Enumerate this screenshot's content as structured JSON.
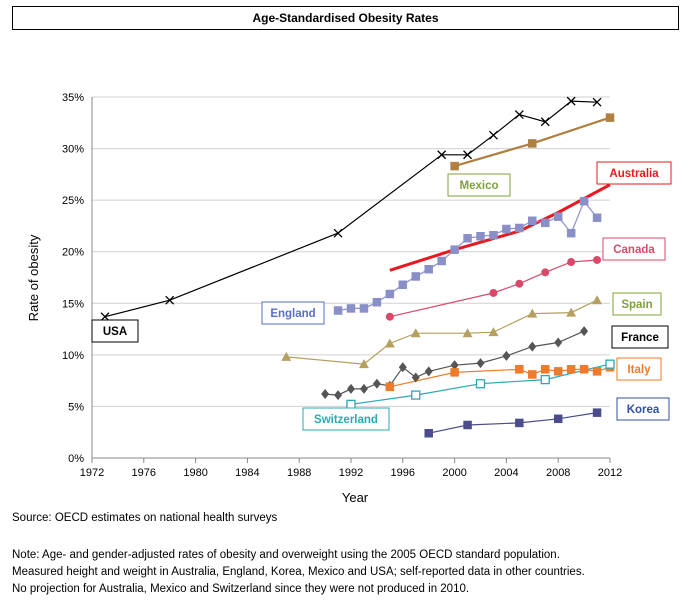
{
  "chart_data": {
    "type": "line",
    "title": "Age-Standardised Obesity Rates",
    "xlabel": "Year",
    "ylabel": "Rate of obesity",
    "xlim": [
      1972,
      2012
    ],
    "ylim": [
      0,
      35
    ],
    "x_ticks": [
      "1972",
      "1976",
      "1980",
      "1984",
      "1988",
      "1992",
      "1996",
      "2000",
      "2004",
      "2008",
      "2012"
    ],
    "y_ticks": [
      "0%",
      "5%",
      "10%",
      "15%",
      "20%",
      "25%",
      "30%",
      "35%"
    ],
    "grid": "horizontal",
    "series": [
      {
        "name": "USA",
        "color": "#000000",
        "marker": "x",
        "label_color": "#000000",
        "x": [
          1973,
          1978,
          1991,
          1999,
          2001,
          2003,
          2005,
          2007,
          2009,
          2011
        ],
        "y": [
          13.7,
          15.3,
          21.8,
          29.4,
          29.4,
          31.3,
          33.3,
          32.6,
          34.6,
          34.5
        ]
      },
      {
        "name": "Mexico",
        "color": "#b08040",
        "marker": "square",
        "label_color": "#7fa03a",
        "x": [
          2000,
          2006,
          2012
        ],
        "y": [
          28.3,
          30.5,
          33.0
        ]
      },
      {
        "name": "Australia",
        "color": "#e8191e",
        "marker": "none",
        "label_color": "#e8191e",
        "x": [
          1995,
          2000,
          2005,
          2008,
          2012
        ],
        "y": [
          18.2,
          20.2,
          22.0,
          23.8,
          26.5
        ]
      },
      {
        "name": "England",
        "color": "#8a8fc8",
        "marker": "square",
        "label_color": "#5a6ec8",
        "x": [
          1991,
          1992,
          1993,
          1994,
          1995,
          1996,
          1997,
          1998,
          1999,
          2000,
          2001,
          2002,
          2003,
          2004,
          2005,
          2006,
          2007,
          2008,
          2009,
          2010,
          2011
        ],
        "y": [
          14.3,
          14.5,
          14.5,
          15.1,
          15.9,
          16.8,
          17.6,
          18.3,
          19.1,
          20.2,
          21.3,
          21.5,
          21.6,
          22.2,
          22.3,
          23.0,
          22.8,
          23.4,
          21.8,
          24.9,
          23.3
        ]
      },
      {
        "name": "Canada",
        "color": "#d94a6a",
        "marker": "circle",
        "label_color": "#d94a6a",
        "x": [
          1995,
          2003,
          2005,
          2007,
          2009,
          2011
        ],
        "y": [
          13.7,
          16.0,
          16.9,
          18.0,
          19.0,
          19.2
        ]
      },
      {
        "name": "Spain",
        "color": "#b5a060",
        "marker": "triangle",
        "label_color": "#7fa03a",
        "x": [
          1987,
          1993,
          1995,
          1997,
          2001,
          2003,
          2006,
          2009,
          2011
        ],
        "y": [
          9.8,
          9.1,
          11.1,
          12.1,
          12.1,
          12.2,
          14.0,
          14.1,
          15.3
        ]
      },
      {
        "name": "France",
        "color": "#555555",
        "marker": "diamond",
        "label_color": "#000000",
        "x": [
          1990,
          1991,
          1992,
          1993,
          1994,
          1995,
          1996,
          1997,
          1998,
          2000,
          2002,
          2004,
          2006,
          2008,
          2010
        ],
        "y": [
          6.2,
          6.1,
          6.7,
          6.7,
          7.2,
          7.0,
          8.8,
          7.8,
          8.4,
          9.0,
          9.2,
          9.9,
          10.8,
          11.2,
          12.3
        ]
      },
      {
        "name": "Italy",
        "color": "#f07a2a",
        "marker": "square",
        "label_color": "#f07a2a",
        "x": [
          1995,
          2000,
          2005,
          2006,
          2007,
          2008,
          2009,
          2010,
          2011,
          2012
        ],
        "y": [
          6.9,
          8.3,
          8.6,
          8.1,
          8.6,
          8.4,
          8.6,
          8.6,
          8.4,
          8.8
        ]
      },
      {
        "name": "Switzerland",
        "color": "#2aa9b5",
        "marker": "hollow-square",
        "label_color": "#2aa9b5",
        "x": [
          1992,
          1997,
          2002,
          2007,
          2012
        ],
        "y": [
          5.2,
          6.1,
          7.2,
          7.6,
          9.1
        ]
      },
      {
        "name": "Korea",
        "color": "#4c4c8c",
        "marker": "square",
        "label_color": "#3050a0",
        "x": [
          1998,
          2001,
          2005,
          2008,
          2011
        ],
        "y": [
          2.4,
          3.2,
          3.4,
          3.8,
          4.4
        ]
      }
    ]
  },
  "source": "Source: OECD estimates on national health surveys",
  "note_lines": [
    "Note: Age- and gender-adjusted rates of obesity and overweight using the 2005 OECD standard population.",
    "Measured height and weight in Australia, England, Korea, Mexico and USA; self-reported data in other countries.",
    "No projection for Australia, Mexico and Switzerland since they were not produced in 2010."
  ]
}
